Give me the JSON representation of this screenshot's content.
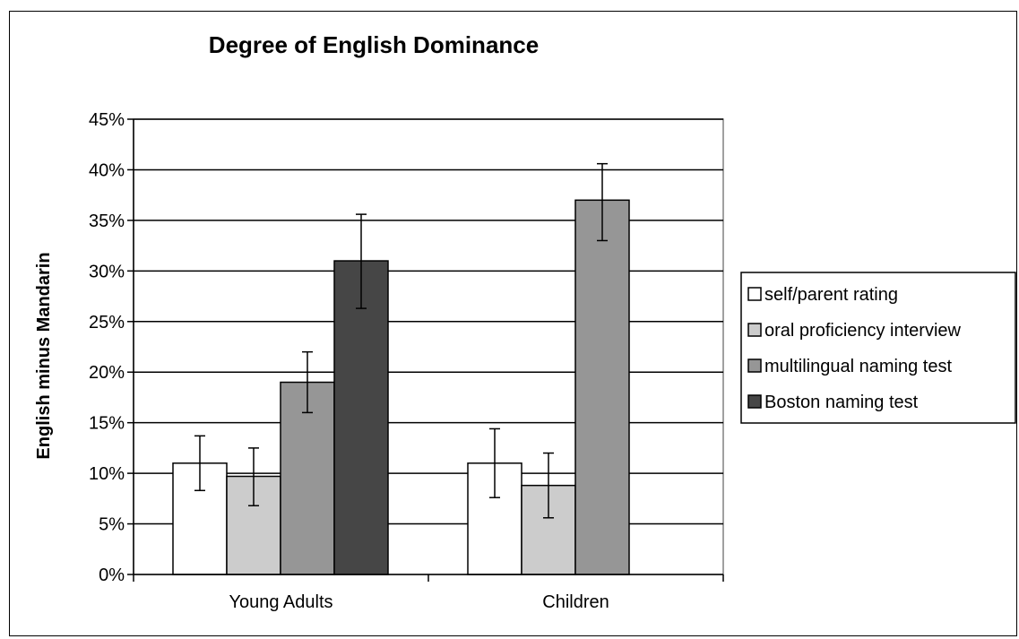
{
  "chart_data": {
    "type": "bar",
    "title": "Degree of English Dominance",
    "xlabel": "",
    "ylabel": "English minus Mandarin",
    "categories": [
      "Young Adults",
      "Children"
    ],
    "ylim": [
      0,
      45
    ],
    "yticks": [
      "0%",
      "5%",
      "10%",
      "15%",
      "20%",
      "25%",
      "30%",
      "35%",
      "40%",
      "45%"
    ],
    "grid": true,
    "legend_position": "right",
    "series": [
      {
        "name": "self/parent rating",
        "color": "#ffffff",
        "values": [
          11.0,
          11.0
        ],
        "error": [
          [
            8.3,
            13.7
          ],
          [
            7.6,
            14.4
          ]
        ]
      },
      {
        "name": "oral proficiency interview",
        "color": "#cccccc",
        "values": [
          9.7,
          8.8
        ],
        "error": [
          [
            6.8,
            12.5
          ],
          [
            5.6,
            12.0
          ]
        ]
      },
      {
        "name": "multilingual naming test",
        "color": "#969696",
        "values": [
          19.0,
          37.0
        ],
        "error": [
          [
            16.0,
            22.0
          ],
          [
            33.0,
            40.6
          ]
        ]
      },
      {
        "name": "Boston naming test",
        "color": "#464646",
        "values": [
          31.0,
          null
        ],
        "error": [
          [
            26.3,
            35.6
          ],
          null
        ]
      }
    ]
  }
}
